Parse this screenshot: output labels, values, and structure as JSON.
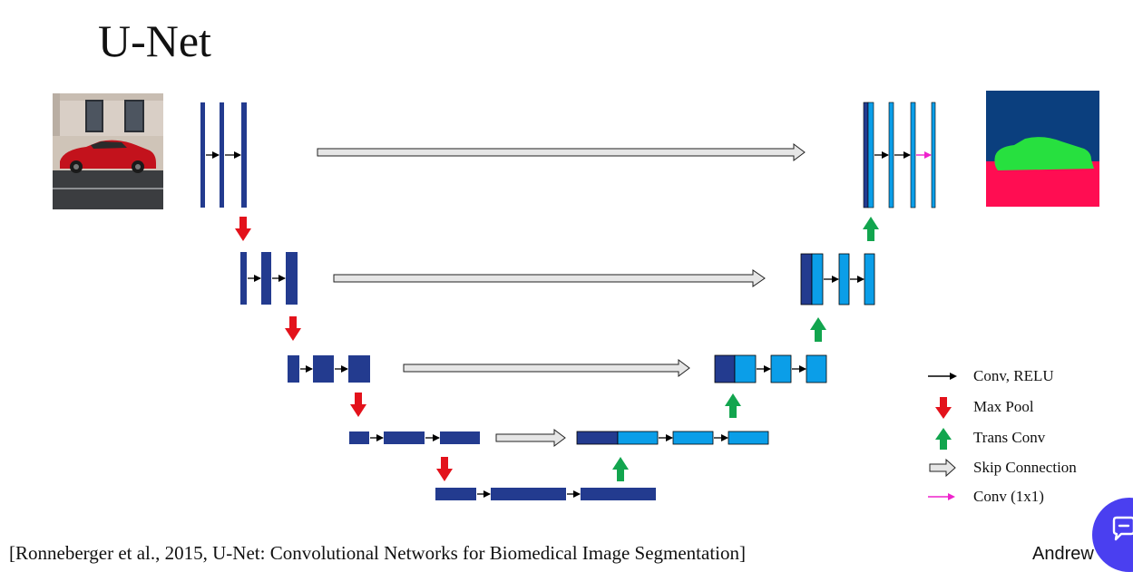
{
  "slide": {
    "title": "U-Net"
  },
  "legend": {
    "items": [
      {
        "label": "Conv, RELU",
        "icon": "black-arrow-icon"
      },
      {
        "label": "Max Pool",
        "icon": "red-down-arrow-icon"
      },
      {
        "label": "Trans Conv",
        "icon": "green-up-arrow-icon"
      },
      {
        "label": "Skip Connection",
        "icon": "gray-hollow-arrow-icon"
      },
      {
        "label": "Conv (1x1)",
        "icon": "magenta-arrow-icon"
      }
    ]
  },
  "citation": "[Ronneberger et al., 2015, U-Net: Convolutional Networks for Biomedical Image Segmentation]",
  "author": "Andrew",
  "colors": {
    "encoder": "#233b8f",
    "decoder": "#0b9ee8",
    "max_pool": "#e3121b",
    "trans_conv": "#12a54e",
    "skip": "#e6e6e6",
    "conv_1x1": "#ee22cc",
    "seg_background": "#0b3f7e",
    "seg_car": "#27e03f",
    "seg_road": "#ff0d52",
    "chat_button": "#4a3ff0"
  },
  "icons": {
    "chat": "chat-bubble-icon",
    "input_image": "red-car-photo",
    "output_map": "segmentation-map"
  }
}
